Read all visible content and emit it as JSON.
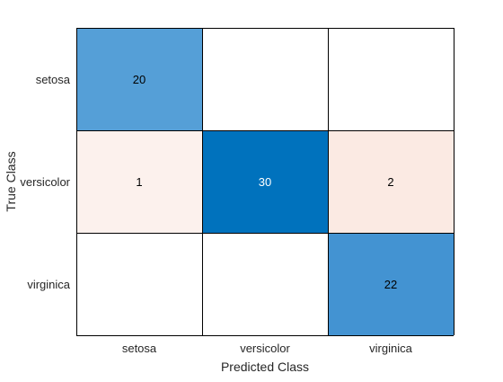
{
  "chart_data": {
    "type": "heatmap",
    "title": "",
    "xlabel": "Predicted Class",
    "ylabel": "True Class",
    "x_categories": [
      "setosa",
      "versicolor",
      "virginica"
    ],
    "y_categories": [
      "setosa",
      "versicolor",
      "virginica"
    ],
    "values": [
      [
        20,
        null,
        null
      ],
      [
        1,
        30,
        2
      ],
      [
        null,
        null,
        22
      ]
    ],
    "cell_colors": [
      [
        "#559fd7",
        "#ffffff",
        "#ffffff"
      ],
      [
        "#fcf1ed",
        "#0072bd",
        "#fbeae3"
      ],
      [
        "#ffffff",
        "#ffffff",
        "#4393d2"
      ]
    ],
    "label_colors": [
      [
        "#000000",
        null,
        null
      ],
      [
        "#000000",
        "#ffffff",
        "#000000"
      ],
      [
        null,
        null,
        "#000000"
      ]
    ],
    "grid_color": "#000000",
    "text_color": "#262626"
  }
}
